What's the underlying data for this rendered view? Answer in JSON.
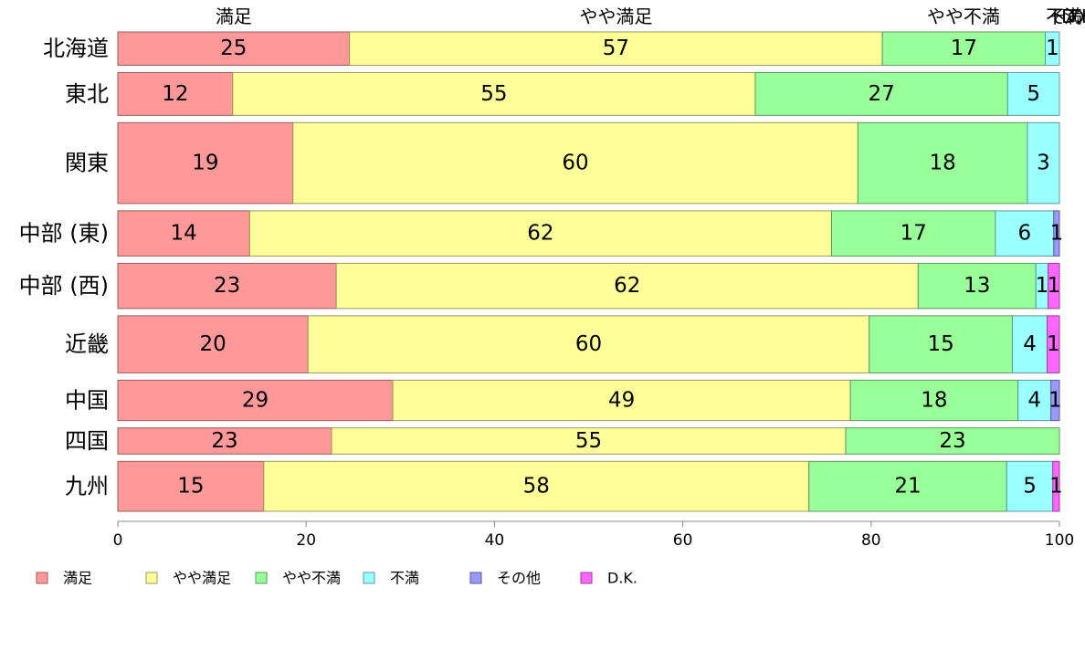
{
  "chart_data": {
    "type": "bar",
    "orientation": "horizontal",
    "stacked": true,
    "categories": [
      "北海道",
      "東北",
      "関東",
      "中部 (東)",
      "中部 (西)",
      "近畿",
      "中国",
      "四国",
      "九州"
    ],
    "series": [
      {
        "name": "満足",
        "color": "#ff9999",
        "values": [
          24.6,
          12.2,
          18.6,
          14.0,
          23.2,
          20.2,
          29.2,
          22.7,
          15.5
        ]
      },
      {
        "name": "やや満足",
        "color": "#ffff99",
        "values": [
          56.6,
          55.5,
          60.0,
          61.8,
          61.8,
          59.6,
          48.6,
          54.6,
          57.9
        ]
      },
      {
        "name": "やや不満",
        "color": "#99ff99",
        "values": [
          17.3,
          26.8,
          18.0,
          17.4,
          12.5,
          15.2,
          17.8,
          22.7,
          21.0
        ]
      },
      {
        "name": "不満",
        "color": "#99ffff",
        "values": [
          1.5,
          5.5,
          3.4,
          6.2,
          1.3,
          3.7,
          3.5,
          0,
          4.9
        ]
      },
      {
        "name": "その他",
        "color": "#9999ff",
        "values": [
          0,
          0,
          0,
          0.6,
          0,
          0,
          0.9,
          0,
          0
        ]
      },
      {
        "name": "D.K.",
        "color": "#ff66ff",
        "values": [
          0,
          0,
          0,
          0,
          1.2,
          1.3,
          0,
          0,
          0.7
        ]
      }
    ],
    "value_labels": [
      [
        "25",
        "57",
        "17",
        "1",
        "",
        ""
      ],
      [
        "12",
        "55",
        "27",
        "5",
        "",
        ""
      ],
      [
        "19",
        "60",
        "18",
        "3",
        "",
        ""
      ],
      [
        "14",
        "62",
        "17",
        "6",
        "1",
        ""
      ],
      [
        "23",
        "62",
        "13",
        "1",
        "",
        "1"
      ],
      [
        "20",
        "60",
        "15",
        "4",
        "",
        "1"
      ],
      [
        "29",
        "49",
        "18",
        "4",
        "1",
        ""
      ],
      [
        "23",
        "55",
        "23",
        "",
        "",
        ""
      ],
      [
        "15",
        "58",
        "21",
        "5",
        "",
        "1"
      ]
    ],
    "bar_weights": [
      1.4,
      1.8,
      3.4,
      1.9,
      1.9,
      2.4,
      1.7,
      1.1,
      2.1
    ],
    "top_labels": [
      {
        "text": "満足",
        "at": 12.3
      },
      {
        "text": "やや満足",
        "at": 52.9
      },
      {
        "text": "やや不満",
        "at": 89.8
      },
      {
        "text": "不満",
        "at": 100.5
      },
      {
        "text": "その...",
        "at": 101.7
      },
      {
        "text": "D.K.",
        "at": 102.2
      }
    ],
    "xlim": [
      0,
      100
    ],
    "xticks": [
      0,
      20,
      40,
      60,
      80,
      100
    ],
    "legend_position": "bottom-left"
  }
}
